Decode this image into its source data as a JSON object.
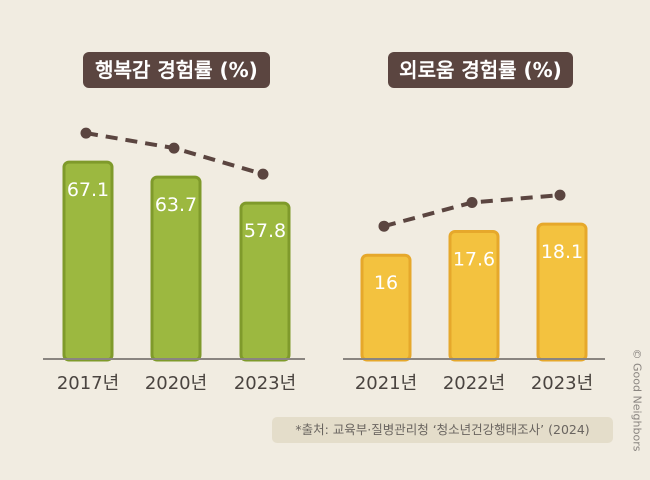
{
  "chart_data": [
    {
      "type": "bar",
      "title": "행복감 경험률 (%)",
      "categories": [
        "2017년",
        "2020년",
        "2023년"
      ],
      "values": [
        67.1,
        63.7,
        57.8
      ],
      "color": "#9cb840",
      "border": "#7f9a2b",
      "trend_line": "dashed"
    },
    {
      "type": "bar",
      "title": "외로움 경험률 (%)",
      "categories": [
        "2021년",
        "2022년",
        "2023년"
      ],
      "values": [
        16,
        17.6,
        18.1
      ],
      "color": "#f3c23f",
      "border": "#e6a82b",
      "trend_line": "dashed"
    }
  ],
  "source": "*출처: 교육부·질병관리청 ‘청소년건강행태조사’ (2024)",
  "credit": "© Good Neighbors",
  "colors": {
    "background": "#f1ece1",
    "title_bg": "#5b4540",
    "trend": "#5b4540"
  }
}
